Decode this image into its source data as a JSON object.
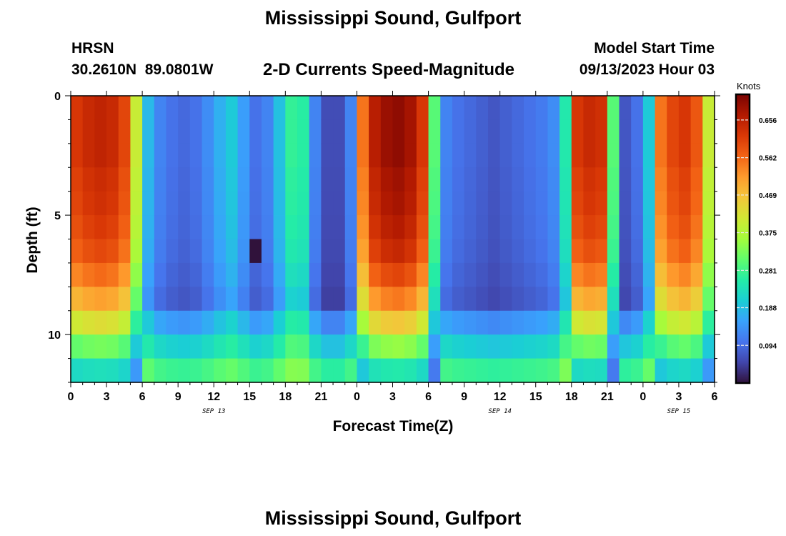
{
  "title": "Mississippi Sound, Gulfport",
  "bottom_title": "Mississippi Sound, Gulfport",
  "station": {
    "id": "HRSN",
    "coords": "30.2610N  89.0801W"
  },
  "subtitle": "2-D Currents Speed-Magnitude",
  "model": {
    "label": "Model Start Time",
    "value": "09/13/2023 Hour 03"
  },
  "chart_data": {
    "type": "heatmap",
    "title": "2-D Currents Speed-Magnitude",
    "xlabel": "Forecast Time(Z)",
    "ylabel": "Depth (ft)",
    "ylim": [
      0,
      12
    ],
    "y_reversed": true,
    "y_ticks": [
      0,
      5,
      10
    ],
    "x_range_hours": [
      0,
      54
    ],
    "x_tick_labels": [
      "0",
      "3",
      "6",
      "9",
      "12",
      "15",
      "18",
      "21",
      "0",
      "3",
      "6",
      "9",
      "12",
      "15",
      "18",
      "21",
      "0",
      "3",
      "6"
    ],
    "date_labels": [
      {
        "text": "SEP 13",
        "hour": 12
      },
      {
        "text": "SEP 14",
        "hour": 36
      },
      {
        "text": "SEP 15",
        "hour": 51
      }
    ],
    "colorbar": {
      "unit": "Knots",
      "min": 0.0,
      "max": 0.72,
      "ticks": [
        "0.094",
        "0.188",
        "0.281",
        "0.375",
        "0.469",
        "0.562",
        "0.656"
      ],
      "colors": [
        "#30123b",
        "#4145ab",
        "#4675ed",
        "#39a2fc",
        "#1bcfd4",
        "#24eca6",
        "#61fc6c",
        "#a4fc3b",
        "#d1e834",
        "#f3c63a",
        "#fe9b2d",
        "#f36315",
        "#d93806",
        "#b11901",
        "#7a0403"
      ]
    },
    "speed_profile_hourly": [
      0.62,
      0.64,
      0.65,
      0.64,
      0.6,
      0.4,
      0.18,
      0.12,
      0.1,
      0.09,
      0.1,
      0.13,
      0.17,
      0.2,
      0.15,
      0.1,
      0.12,
      0.19,
      0.27,
      0.26,
      0.12,
      0.06,
      0.06,
      0.12,
      0.55,
      0.66,
      0.69,
      0.7,
      0.68,
      0.62,
      0.3,
      0.12,
      0.1,
      0.09,
      0.08,
      0.07,
      0.08,
      0.09,
      0.1,
      0.11,
      0.13,
      0.25,
      0.62,
      0.64,
      0.63,
      0.3,
      0.07,
      0.1,
      0.2,
      0.55,
      0.6,
      0.62,
      0.58,
      0.4,
      0.14
    ],
    "depth_factor": [
      1.0,
      1.0,
      1.0,
      0.98,
      0.97,
      0.95,
      0.92,
      0.86,
      0.78,
      0.66,
      0.5,
      0.36
    ],
    "anomaly": {
      "hour": 15,
      "depth": [
        5.5,
        7.5
      ],
      "value": 0.0
    }
  }
}
